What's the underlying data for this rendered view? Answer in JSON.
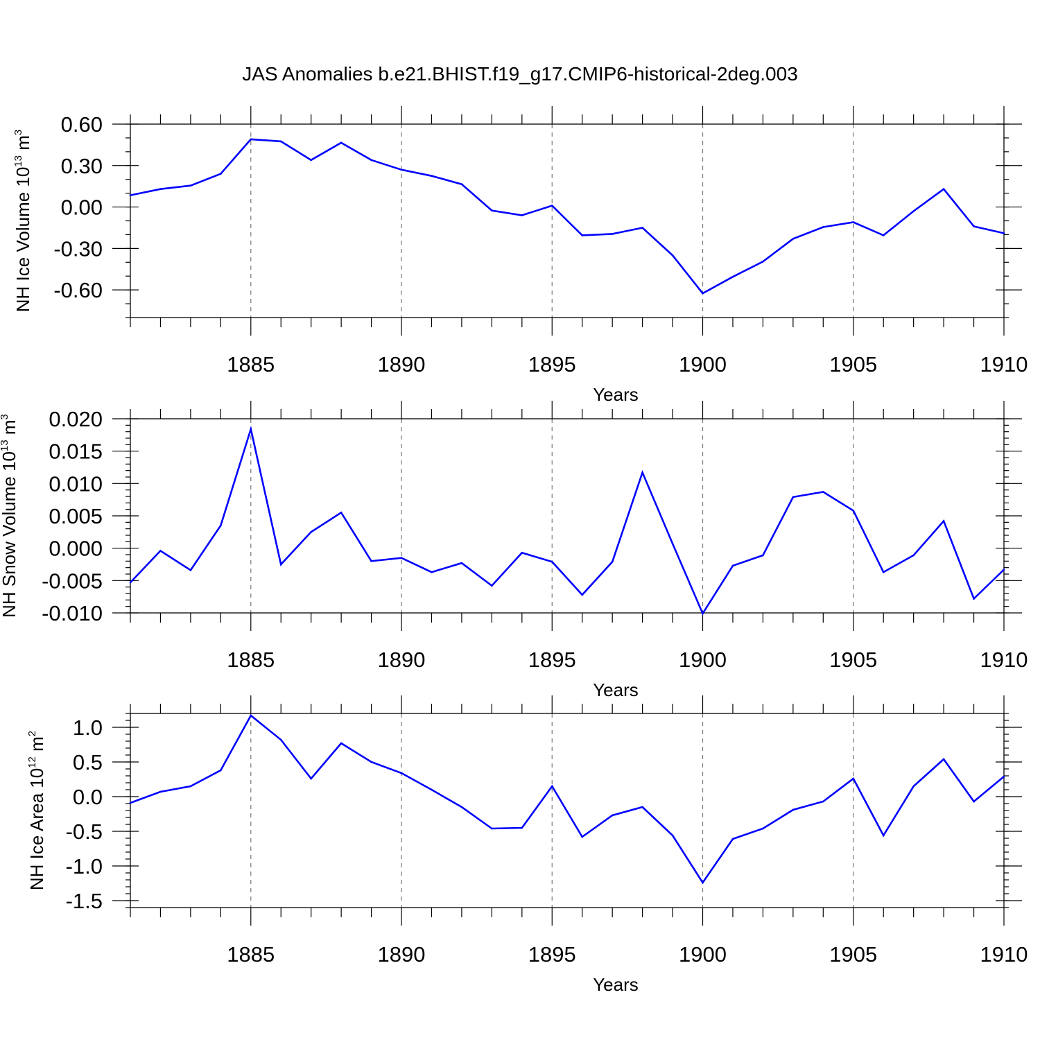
{
  "title": "JAS Anomalies b.e21.BHIST.f19_g17.CMIP6-historical-2deg.003",
  "colors": {
    "line": "#0000ff",
    "grid": "#777777",
    "axis": "#000000"
  },
  "chart_data": [
    {
      "type": "line",
      "name": "ice-volume",
      "ylabel": {
        "main": "NH Ice Volume 10",
        "sup": "13",
        "mid": " m",
        "sup2": "3"
      },
      "xlabel": "Years",
      "xlim": [
        1881,
        1910
      ],
      "ylim": [
        -0.8,
        0.6
      ],
      "yticks": [
        0.6,
        0.3,
        0.0,
        -0.3,
        -0.6
      ],
      "ytick_labels": [
        "0.60",
        "0.30",
        "0.00",
        "-0.30",
        "-0.60"
      ],
      "yminor_step": 0.1,
      "xticks": [
        1885,
        1890,
        1895,
        1900,
        1905,
        1910
      ],
      "xtick_labels": [
        "1885",
        "1890",
        "1895",
        "1900",
        "1905",
        "1910"
      ],
      "grid_x": [
        1885,
        1890,
        1895,
        1900,
        1905
      ],
      "x": [
        1881,
        1882,
        1883,
        1884,
        1885,
        1886,
        1887,
        1888,
        1889,
        1890,
        1891,
        1892,
        1893,
        1894,
        1895,
        1896,
        1897,
        1898,
        1899,
        1900,
        1901,
        1902,
        1903,
        1904,
        1905,
        1906,
        1907,
        1908,
        1909,
        1910
      ],
      "values": [
        0.085,
        0.13,
        0.155,
        0.24,
        0.49,
        0.475,
        0.34,
        0.465,
        0.34,
        0.27,
        0.225,
        0.165,
        -0.025,
        -0.06,
        0.01,
        -0.205,
        -0.195,
        -0.15,
        -0.35,
        -0.625,
        -0.505,
        -0.395,
        -0.23,
        -0.145,
        -0.11,
        -0.205,
        -0.03,
        0.13,
        -0.14,
        -0.19
      ]
    },
    {
      "type": "line",
      "name": "snow-volume",
      "ylabel": {
        "main": "NH Snow Volume 10",
        "sup": "13",
        "mid": " m",
        "sup2": "3"
      },
      "xlabel": "Years",
      "xlim": [
        1881,
        1910
      ],
      "ylim": [
        -0.01,
        0.02
      ],
      "yticks": [
        0.02,
        0.015,
        0.01,
        0.005,
        0.0,
        -0.005,
        -0.01
      ],
      "ytick_labels": [
        "0.020",
        "0.015",
        "0.010",
        "0.005",
        "0.000",
        "-0.005",
        "-0.010"
      ],
      "yminor_step": 0.001,
      "xticks": [
        1885,
        1890,
        1895,
        1900,
        1905,
        1910
      ],
      "xtick_labels": [
        "1885",
        "1890",
        "1895",
        "1900",
        "1905",
        "1910"
      ],
      "grid_x": [
        1885,
        1890,
        1895,
        1900,
        1905
      ],
      "x": [
        1881,
        1882,
        1883,
        1884,
        1885,
        1886,
        1887,
        1888,
        1889,
        1890,
        1891,
        1892,
        1893,
        1894,
        1895,
        1896,
        1897,
        1898,
        1899,
        1900,
        1901,
        1902,
        1903,
        1904,
        1905,
        1906,
        1907,
        1908,
        1909,
        1910
      ],
      "values": [
        -0.0053,
        -0.0004,
        -0.0034,
        0.0035,
        0.0184,
        -0.0025,
        0.0025,
        0.0055,
        -0.002,
        -0.0015,
        -0.0037,
        -0.0023,
        -0.0058,
        -0.0007,
        -0.0021,
        -0.0072,
        -0.0021,
        0.0117,
        0.0007,
        -0.0101,
        -0.0027,
        -0.0011,
        0.0079,
        0.0087,
        0.0058,
        -0.0037,
        -0.0011,
        0.0042,
        -0.0078,
        -0.0033
      ]
    },
    {
      "type": "line",
      "name": "ice-area",
      "ylabel": {
        "main": "NH Ice Area 10",
        "sup": "12",
        "mid": " m",
        "sup2": "2"
      },
      "xlabel": "Years",
      "xlim": [
        1881,
        1910
      ],
      "ylim": [
        -1.6,
        1.2
      ],
      "yticks": [
        1.0,
        0.5,
        0.0,
        -0.5,
        -1.0,
        -1.5
      ],
      "ytick_labels": [
        "1.0",
        "0.5",
        "0.0",
        "-0.5",
        "-1.0",
        "-1.5"
      ],
      "yminor_step": 0.1,
      "xticks": [
        1885,
        1890,
        1895,
        1900,
        1905,
        1910
      ],
      "xtick_labels": [
        "1885",
        "1890",
        "1895",
        "1900",
        "1905",
        "1910"
      ],
      "grid_x": [
        1885,
        1890,
        1895,
        1900,
        1905
      ],
      "x": [
        1881,
        1882,
        1883,
        1884,
        1885,
        1886,
        1887,
        1888,
        1889,
        1890,
        1891,
        1892,
        1893,
        1894,
        1895,
        1896,
        1897,
        1898,
        1899,
        1900,
        1901,
        1902,
        1903,
        1904,
        1905,
        1906,
        1907,
        1908,
        1909,
        1910
      ],
      "values": [
        -0.09,
        0.07,
        0.15,
        0.38,
        1.17,
        0.82,
        0.26,
        0.77,
        0.5,
        0.34,
        0.1,
        -0.15,
        -0.46,
        -0.45,
        0.15,
        -0.58,
        -0.27,
        -0.15,
        -0.56,
        -1.24,
        -0.61,
        -0.46,
        -0.19,
        -0.07,
        0.26,
        -0.56,
        0.15,
        0.54,
        -0.07,
        0.29
      ]
    }
  ]
}
